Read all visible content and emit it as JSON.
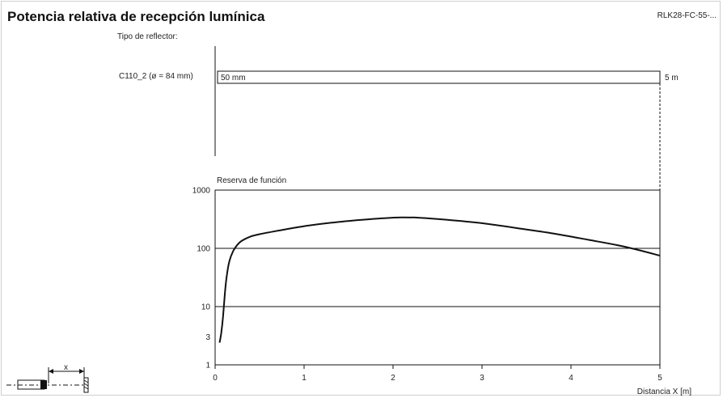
{
  "page": {
    "title": "Potencia relativa de recepción lumínica",
    "code": "RLK28-FC-55-..."
  },
  "reflector": {
    "heading": "Tipo de reflector:",
    "name": "C110_2 (ø = 84 mm)",
    "bar_label": "50 mm",
    "range_label": "5 m",
    "range_start_m": 0.0,
    "range_end_m": 5.0
  },
  "diagram": {
    "distance_label": "x"
  },
  "chart_data": {
    "type": "line",
    "title": "",
    "ylabel": "Reserva de función",
    "xlabel": "Distancia X [m]",
    "xlim": [
      0,
      5
    ],
    "ylim": [
      1,
      1000
    ],
    "yscale": "log",
    "grid": true,
    "xticks": [
      "0",
      "1",
      "2",
      "3",
      "4",
      "5"
    ],
    "yticks": [
      "1",
      "3",
      "10",
      "100",
      "1000"
    ],
    "series": [
      {
        "name": "",
        "color": "#111111",
        "x": [
          0.05,
          0.07,
          0.09,
          0.11,
          0.13,
          0.16,
          0.2,
          0.25,
          0.3,
          0.4,
          0.5,
          0.7,
          1.0,
          1.3,
          1.6,
          1.9,
          2.1,
          2.3,
          2.6,
          3.0,
          3.4,
          3.8,
          4.2,
          4.6,
          5.0
        ],
        "y": [
          2.4,
          3.6,
          7.0,
          17.0,
          33.0,
          60.0,
          88.0,
          115.0,
          135.0,
          160.0,
          175.0,
          200.0,
          240.0,
          275.0,
          305.0,
          330.0,
          340.0,
          335.0,
          310.0,
          270.0,
          222.0,
          180.0,
          140.0,
          107.0,
          75.0
        ]
      }
    ]
  }
}
